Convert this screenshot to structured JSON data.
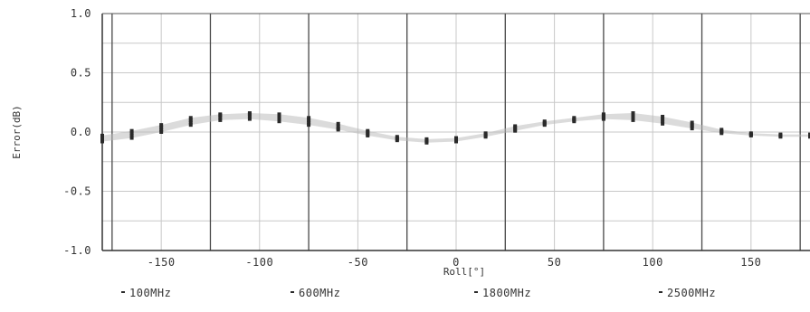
{
  "chart_data": {
    "type": "scatter",
    "xlabel": "Roll[°]",
    "ylabel": "Error(dB)",
    "xlim": [
      -180,
      180
    ],
    "ylim": [
      -1.0,
      1.0
    ],
    "x_ticks": [
      -150,
      -100,
      -50,
      0,
      50,
      100,
      150
    ],
    "y_ticks": [
      1.0,
      0.5,
      0.0,
      -0.5,
      -1.0
    ],
    "y_tick_labels": [
      "1.0",
      "0.5",
      "0.0",
      "-0.5",
      "-1.0"
    ],
    "grid": true,
    "legend_position": "bottom",
    "x": [
      -180,
      -165,
      -150,
      -135,
      -120,
      -105,
      -90,
      -75,
      -60,
      -45,
      -30,
      -15,
      0,
      15,
      30,
      45,
      60,
      75,
      90,
      105,
      120,
      135,
      150,
      165,
      180
    ],
    "series": [
      {
        "name": "100MHz",
        "values": [
          -0.08,
          -0.05,
          0.0,
          0.06,
          0.1,
          0.11,
          0.09,
          0.06,
          0.02,
          -0.03,
          -0.07,
          -0.09,
          -0.08,
          -0.04,
          0.01,
          0.06,
          0.09,
          0.11,
          0.1,
          0.07,
          0.03,
          -0.01,
          -0.03,
          -0.04,
          -0.04
        ]
      },
      {
        "name": "600MHz",
        "values": [
          -0.06,
          -0.03,
          0.02,
          0.08,
          0.12,
          0.13,
          0.11,
          0.08,
          0.03,
          -0.02,
          -0.06,
          -0.08,
          -0.07,
          -0.03,
          0.02,
          0.07,
          0.1,
          0.12,
          0.12,
          0.09,
          0.05,
          0.0,
          -0.02,
          -0.03,
          -0.03
        ]
      },
      {
        "name": "1800MHz",
        "values": [
          -0.04,
          -0.01,
          0.04,
          0.1,
          0.14,
          0.15,
          0.13,
          0.1,
          0.05,
          0.0,
          -0.05,
          -0.07,
          -0.06,
          -0.02,
          0.04,
          0.08,
          0.11,
          0.14,
          0.14,
          0.11,
          0.06,
          0.01,
          -0.02,
          -0.03,
          -0.03
        ]
      },
      {
        "name": "2500MHz",
        "values": [
          -0.03,
          0.01,
          0.06,
          0.12,
          0.15,
          0.16,
          0.15,
          0.12,
          0.07,
          0.01,
          -0.04,
          -0.06,
          -0.05,
          -0.01,
          0.05,
          0.09,
          0.12,
          0.15,
          0.16,
          0.13,
          0.08,
          0.02,
          -0.01,
          -0.02,
          -0.02
        ]
      }
    ],
    "colors": {
      "marker": "#2a2a2a",
      "band": "#b8b8b8",
      "grid_major": "#4a4a4a",
      "grid_minor": "#c8c8c8"
    }
  }
}
